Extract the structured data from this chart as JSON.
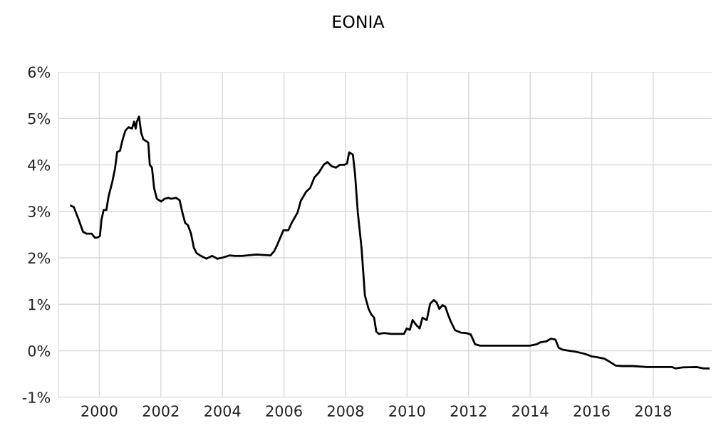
{
  "chart_data": {
    "type": "line",
    "title": "EONIA",
    "xlim": [
      1998.68,
      2019.9
    ],
    "xticks": [
      2000,
      2002,
      2004,
      2006,
      2008,
      2010,
      2012,
      2014,
      2016,
      2018
    ],
    "ylim": [
      -1,
      6
    ],
    "yticks": [
      {
        "value": -1,
        "label": "-1%"
      },
      {
        "value": 0,
        "label": "0%"
      },
      {
        "value": 1,
        "label": "1%"
      },
      {
        "value": 2,
        "label": "2%"
      },
      {
        "value": 3,
        "label": "3%"
      },
      {
        "value": 4,
        "label": "4%"
      },
      {
        "value": 5,
        "label": "5%"
      },
      {
        "value": 6,
        "label": "6%"
      }
    ],
    "grid": true,
    "series": [
      {
        "color": "#000000",
        "x": [
          1999.08,
          1999.17,
          1999.33,
          1999.47,
          1999.58,
          1999.75,
          1999.86,
          1999.95,
          2000.02,
          2000.07,
          2000.14,
          2000.23,
          2000.3,
          2000.42,
          2000.51,
          2000.58,
          2000.67,
          2000.76,
          2000.85,
          2000.95,
          2001.06,
          2001.13,
          2001.18,
          2001.22,
          2001.29,
          2001.36,
          2001.43,
          2001.52,
          2001.59,
          2001.64,
          2001.71,
          2001.78,
          2001.87,
          2002.01,
          2002.12,
          2002.24,
          2002.33,
          2002.49,
          2002.61,
          2002.7,
          2002.79,
          2002.88,
          2002.98,
          2003.07,
          2003.16,
          2003.3,
          2003.48,
          2003.67,
          2003.83,
          2003.99,
          2004.22,
          2004.41,
          2004.64,
          2005.1,
          2005.56,
          2005.68,
          2005.79,
          2005.98,
          2006.14,
          2006.25,
          2006.44,
          2006.55,
          2006.72,
          2006.85,
          2006.99,
          2007.13,
          2007.29,
          2007.41,
          2007.55,
          2007.69,
          2007.82,
          2007.96,
          2008.05,
          2008.12,
          2008.24,
          2008.31,
          2008.4,
          2008.52,
          2008.63,
          2008.75,
          2008.84,
          2008.93,
          2009.0,
          2009.09,
          2009.25,
          2009.49,
          2009.72,
          2009.9,
          2009.99,
          2010.09,
          2010.18,
          2010.29,
          2010.41,
          2010.5,
          2010.64,
          2010.75,
          2010.87,
          2010.96,
          2011.05,
          2011.15,
          2011.24,
          2011.33,
          2011.42,
          2011.56,
          2011.75,
          2011.91,
          2012.07,
          2012.21,
          2012.37,
          2012.72,
          2013.18,
          2013.64,
          2013.99,
          2014.22,
          2014.33,
          2014.52,
          2014.68,
          2014.82,
          2014.93,
          2015.07,
          2015.25,
          2015.48,
          2015.67,
          2015.83,
          2015.99,
          2016.18,
          2016.41,
          2016.59,
          2016.78,
          2016.99,
          2017.33,
          2017.79,
          2018.26,
          2018.6,
          2018.72,
          2018.95,
          2019.41,
          2019.64,
          2019.8
        ],
        "values": [
          3.12,
          3.09,
          2.82,
          2.56,
          2.52,
          2.52,
          2.43,
          2.44,
          2.47,
          2.82,
          3.03,
          3.03,
          3.32,
          3.63,
          3.92,
          4.28,
          4.3,
          4.55,
          4.74,
          4.81,
          4.78,
          4.93,
          4.78,
          4.93,
          5.04,
          4.69,
          4.55,
          4.51,
          4.48,
          4.0,
          3.94,
          3.5,
          3.27,
          3.21,
          3.27,
          3.29,
          3.27,
          3.29,
          3.24,
          2.97,
          2.75,
          2.7,
          2.52,
          2.22,
          2.1,
          2.04,
          1.98,
          2.04,
          1.98,
          2.0,
          2.05,
          2.04,
          2.04,
          2.07,
          2.05,
          2.14,
          2.29,
          2.59,
          2.59,
          2.75,
          2.97,
          3.23,
          3.42,
          3.5,
          3.73,
          3.83,
          4.0,
          4.06,
          3.97,
          3.94,
          4.0,
          4.0,
          4.03,
          4.27,
          4.22,
          3.8,
          2.97,
          2.22,
          1.19,
          0.9,
          0.78,
          0.71,
          0.41,
          0.36,
          0.38,
          0.36,
          0.36,
          0.36,
          0.48,
          0.45,
          0.66,
          0.56,
          0.48,
          0.71,
          0.66,
          1.01,
          1.09,
          1.04,
          0.9,
          0.98,
          0.95,
          0.78,
          0.63,
          0.44,
          0.39,
          0.38,
          0.35,
          0.14,
          0.11,
          0.11,
          0.11,
          0.11,
          0.11,
          0.14,
          0.18,
          0.2,
          0.26,
          0.24,
          0.06,
          0.02,
          0.0,
          -0.02,
          -0.05,
          -0.08,
          -0.12,
          -0.14,
          -0.17,
          -0.24,
          -0.32,
          -0.33,
          -0.33,
          -0.35,
          -0.35,
          -0.35,
          -0.38,
          -0.36,
          -0.35,
          -0.38,
          -0.38
        ]
      }
    ]
  }
}
